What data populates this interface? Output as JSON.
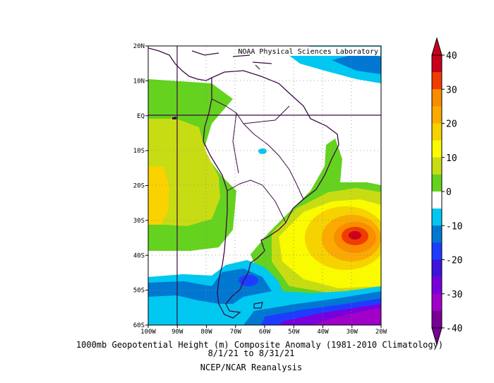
{
  "map": {
    "attribution": "NOAA Physical Sciences Laboratory",
    "lon_labels": [
      "100W",
      "90W",
      "80W",
      "70W",
      "60W",
      "50W",
      "40W",
      "30W",
      "20W"
    ],
    "lat_labels": [
      "20N",
      "10N",
      "EQ",
      "10S",
      "20S",
      "30S",
      "40S",
      "50S",
      "60S"
    ],
    "extent": {
      "lon": [
        -100,
        -20
      ],
      "lat": [
        -60,
        20
      ]
    },
    "grid": "dotted",
    "reference_lines": {
      "equator": 0,
      "meridian": -90
    }
  },
  "colorbar": {
    "ticks": [
      "40",
      "30",
      "20",
      "10",
      "0",
      "-10",
      "-20",
      "-30",
      "-40"
    ],
    "colors": [
      "#c8001e",
      "#f03c00",
      "#fa8c00",
      "#faaa00",
      "#f5d200",
      "#fafa00",
      "#c8dc14",
      "#64d21e",
      "#ffffff",
      "#00c8f0",
      "#0078d2",
      "#1e3cff",
      "#3c14dc",
      "#7800dc",
      "#a000c8",
      "#780096"
    ]
  },
  "caption": {
    "line1": "1000mb Geopotential Height (m) Composite Anomaly (1981-2010 Climatology)",
    "line2": "8/1/21  to 8/31/21",
    "line3": "NCEP/NCAR Reanalysis"
  }
}
